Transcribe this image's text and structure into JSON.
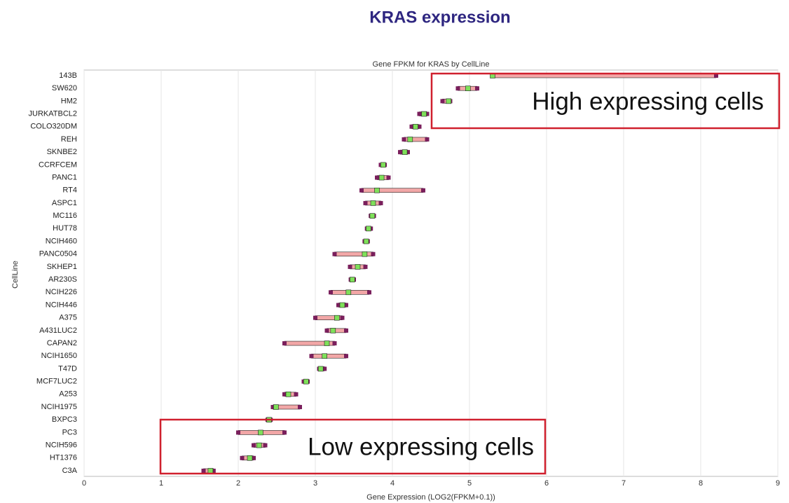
{
  "page_title": "KRAS expression",
  "chart_data": {
    "type": "range",
    "title": "Gene FPKM for KRAS by CellLine",
    "x_label": "Gene Expression (LOG2(FPKM+0.1))",
    "y_label": "CellLine",
    "categories": [
      "143B",
      "SW620",
      "HM2",
      "JURKATBCL2",
      "COLO320DM",
      "REH",
      "SKNBE2",
      "CCRFCEM",
      "PANC1",
      "RT4",
      "ASPC1",
      "MC116",
      "HUT78",
      "NCIH460",
      "PANC0504",
      "SKHEP1",
      "AR230S",
      "NCIH226",
      "NCIH446",
      "A375",
      "A431LUC2",
      "CAPAN2",
      "NCIH1650",
      "T47D",
      "MCF7LUC2",
      "A253",
      "NCIH1975",
      "BXPC3",
      "PC3",
      "NCIH596",
      "HT1376",
      "C3A"
    ],
    "series": [
      {
        "name": "min",
        "color": "#222222",
        "values": [
          5.3,
          4.85,
          4.65,
          4.35,
          4.25,
          4.15,
          4.1,
          3.85,
          3.8,
          3.6,
          3.65,
          3.72,
          3.67,
          3.64,
          3.25,
          3.45,
          3.46,
          3.2,
          3.3,
          3.0,
          3.15,
          2.6,
          2.95,
          3.05,
          2.85,
          2.6,
          2.45,
          2.38,
          2.0,
          2.2,
          2.05,
          1.55
        ]
      },
      {
        "name": "median",
        "color": "#7a1f5c",
        "values": [
          5.3,
          4.98,
          4.73,
          4.41,
          4.3,
          4.23,
          4.16,
          3.88,
          3.86,
          3.8,
          3.75,
          3.74,
          3.69,
          3.66,
          3.64,
          3.55,
          3.48,
          3.43,
          3.35,
          3.28,
          3.23,
          3.15,
          3.12,
          3.07,
          2.88,
          2.65,
          2.49,
          2.4,
          2.29,
          2.27,
          2.15,
          1.64
        ]
      },
      {
        "name": "max",
        "color": "#222222",
        "values": [
          8.2,
          5.1,
          4.75,
          4.45,
          4.35,
          4.45,
          4.2,
          3.9,
          3.95,
          4.4,
          3.85,
          3.76,
          3.72,
          3.68,
          3.75,
          3.65,
          3.5,
          3.7,
          3.4,
          3.35,
          3.4,
          3.25,
          3.4,
          3.12,
          2.9,
          2.75,
          2.8,
          2.42,
          2.6,
          2.35,
          2.2,
          1.68
        ]
      }
    ],
    "box_color": "#f2a7a7",
    "xlim": [
      0,
      9
    ],
    "xticks": [
      0,
      1,
      2,
      3,
      4,
      5,
      6,
      7,
      8,
      9
    ],
    "grid": true,
    "annotations": [
      "High expressing cells",
      "Low expressing cells"
    ]
  }
}
